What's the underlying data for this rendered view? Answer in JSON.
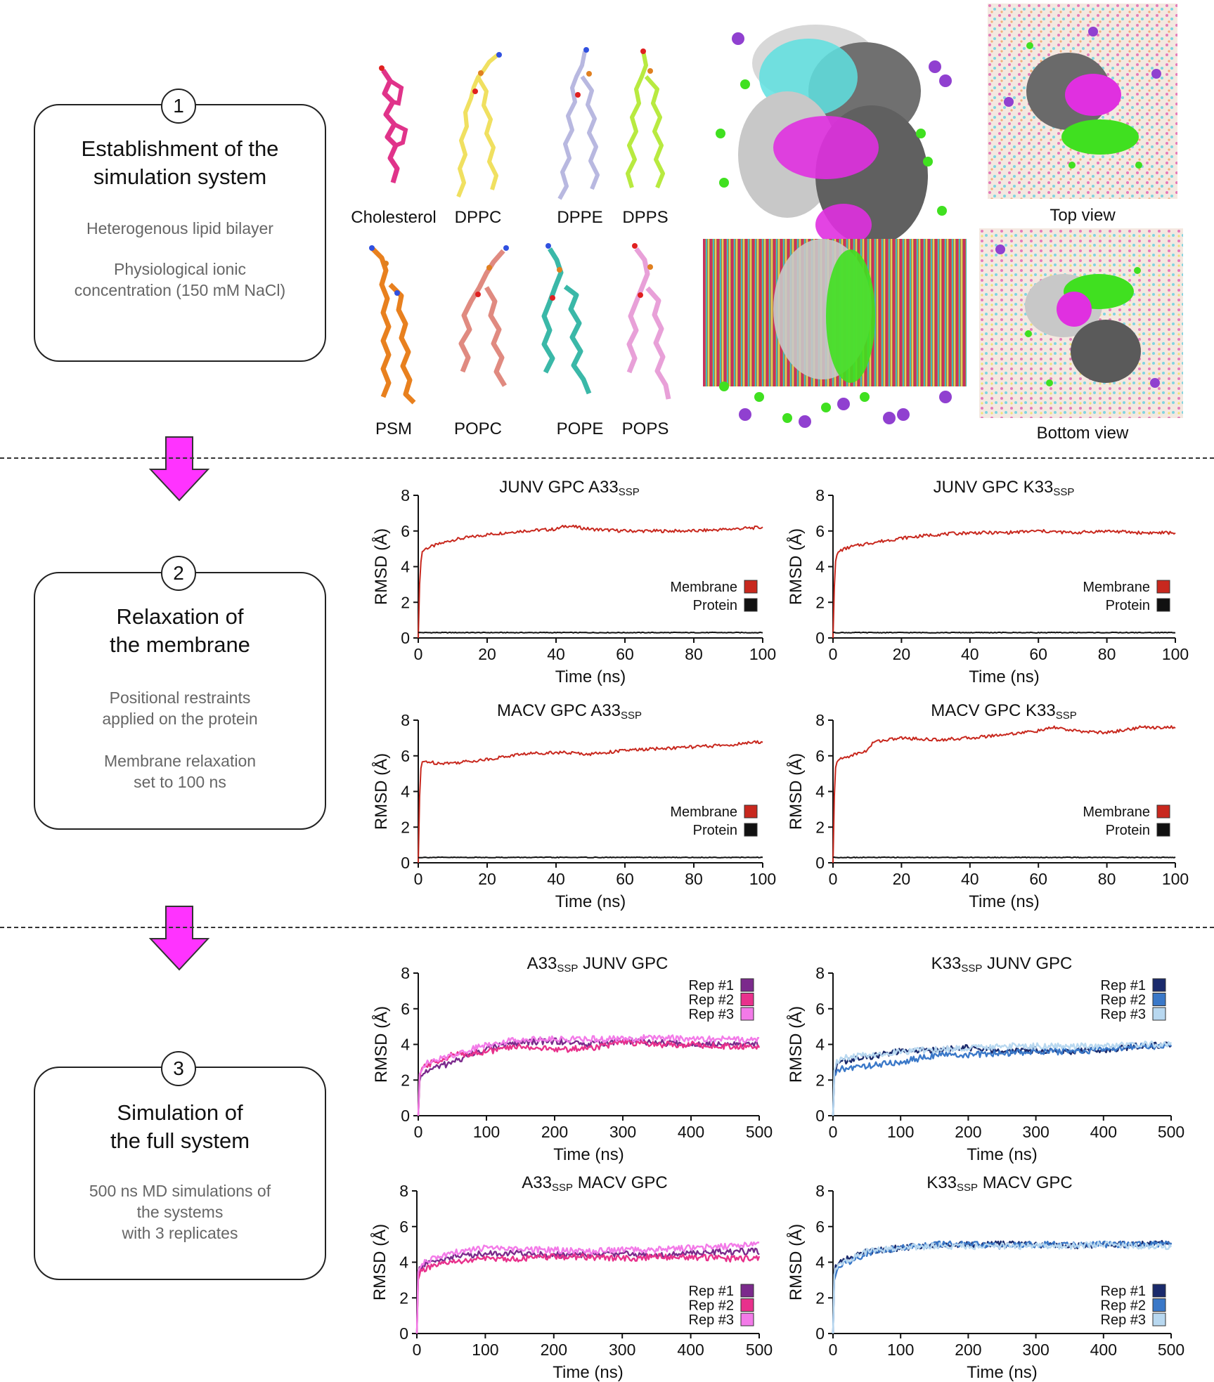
{
  "colors": {
    "membrane": "#c8281e",
    "protein": "#111111",
    "arrow": "#ff33ff",
    "junv_rep1": "#7b2a8c",
    "junv_rep2": "#e8318c",
    "junv_rep3": "#f37ae8",
    "k33_rep1": "#1a2a6c",
    "k33_rep2": "#3a78c8",
    "k33_rep3": "#b8d8f0"
  },
  "steps": [
    {
      "number": "1",
      "title_line1": "Establishment of the",
      "title_line2": "simulation system",
      "desc_line1": "Heterogenous lipid bilayer",
      "desc_line2": "Physiological ionic",
      "desc_line3": "concentration (150 mM NaCl)"
    },
    {
      "number": "2",
      "title_line1": "Relaxation of",
      "title_line2": "the membrane",
      "desc_line1": "Positional restraints",
      "desc_line2": "applied on the protein",
      "desc_line3": "Membrane relaxation",
      "desc_line4": "set to 100 ns"
    },
    {
      "number": "3",
      "title_line1": "Simulation of",
      "title_line2": "the full system",
      "desc_line1": "500 ns MD simulations of",
      "desc_line2": "the systems",
      "desc_line3": "with 3 replicates"
    }
  ],
  "lipids": [
    {
      "name": "Cholesterol",
      "color": "#e0338a"
    },
    {
      "name": "DPPC",
      "color": "#f0e060"
    },
    {
      "name": "DPPE",
      "color": "#b8b8e0"
    },
    {
      "name": "DPPS",
      "color": "#b8ea40"
    },
    {
      "name": "PSM",
      "color": "#e8801e"
    },
    {
      "name": "POPC",
      "color": "#e08a80"
    },
    {
      "name": "POPE",
      "color": "#3ab8a8"
    },
    {
      "name": "POPS",
      "color": "#e8a0d8"
    }
  ],
  "views": {
    "top": "Top view",
    "bottom": "Bottom view"
  },
  "chart_data": [
    {
      "id": "c1",
      "type": "line",
      "title": "JUNV GPC A33",
      "title_sub": "SSP",
      "xlabel": "Time (ns)",
      "ylabel": "RMSD (Å)",
      "xlim": [
        0,
        100
      ],
      "ylim": [
        0,
        8
      ],
      "xticks": [
        "0",
        "20",
        "40",
        "60",
        "80",
        "100"
      ],
      "yticks": [
        "0",
        "2",
        "4",
        "6",
        "8"
      ],
      "series": [
        {
          "name": "Membrane",
          "color": "#c8281e",
          "x": [
            0,
            0.5,
            1,
            2,
            5,
            10,
            20,
            30,
            40,
            43,
            50,
            60,
            70,
            80,
            90,
            100
          ],
          "y": [
            0,
            3.8,
            4.8,
            5.0,
            5.2,
            5.5,
            5.8,
            6.0,
            6.1,
            6.3,
            6.1,
            6.0,
            6.0,
            6.0,
            6.1,
            6.2
          ]
        },
        {
          "name": "Protein",
          "color": "#111111",
          "x": [
            0,
            100
          ],
          "y": [
            0.3,
            0.3
          ]
        }
      ]
    },
    {
      "id": "c2",
      "type": "line",
      "title": "JUNV GPC K33",
      "title_sub": "SSP",
      "xlabel": "Time (ns)",
      "ylabel": "RMSD (Å)",
      "xlim": [
        0,
        100
      ],
      "ylim": [
        0,
        8
      ],
      "xticks": [
        "0",
        "20",
        "40",
        "60",
        "80",
        "100"
      ],
      "yticks": [
        "0",
        "2",
        "4",
        "6",
        "8"
      ],
      "series": [
        {
          "name": "Membrane",
          "color": "#c8281e",
          "x": [
            0,
            0.5,
            1,
            2,
            5,
            10,
            20,
            30,
            40,
            50,
            60,
            70,
            80,
            90,
            100
          ],
          "y": [
            0,
            3.8,
            4.6,
            4.9,
            5.1,
            5.3,
            5.6,
            5.8,
            5.9,
            5.9,
            6.0,
            5.9,
            6.0,
            5.9,
            5.9
          ]
        },
        {
          "name": "Protein",
          "color": "#111111",
          "x": [
            0,
            100
          ],
          "y": [
            0.3,
            0.3
          ]
        }
      ]
    },
    {
      "id": "c3",
      "type": "line",
      "title": "MACV GPC A33",
      "title_sub": "SSP",
      "xlabel": "Time (ns)",
      "ylabel": "RMSD (Å)",
      "xlim": [
        0,
        100
      ],
      "ylim": [
        0,
        8
      ],
      "xticks": [
        "0",
        "20",
        "40",
        "60",
        "80",
        "100"
      ],
      "yticks": [
        "0",
        "2",
        "4",
        "6",
        "8"
      ],
      "series": [
        {
          "name": "Membrane",
          "color": "#c8281e",
          "x": [
            0,
            0.5,
            1,
            2,
            5,
            10,
            20,
            30,
            40,
            50,
            60,
            70,
            80,
            90,
            100
          ],
          "y": [
            0,
            4.8,
            5.6,
            5.7,
            5.6,
            5.6,
            5.8,
            6.1,
            6.2,
            6.1,
            6.3,
            6.4,
            6.5,
            6.6,
            6.8
          ]
        },
        {
          "name": "Protein",
          "color": "#111111",
          "x": [
            0,
            100
          ],
          "y": [
            0.3,
            0.3
          ]
        }
      ]
    },
    {
      "id": "c4",
      "type": "line",
      "title": "MACV GPC K33",
      "title_sub": "SSP",
      "xlabel": "Time (ns)",
      "ylabel": "RMSD (Å)",
      "xlim": [
        0,
        100
      ],
      "ylim": [
        0,
        8
      ],
      "xticks": [
        "0",
        "20",
        "40",
        "60",
        "80",
        "100"
      ],
      "yticks": [
        "0",
        "2",
        "4",
        "6",
        "8"
      ],
      "series": [
        {
          "name": "Membrane",
          "color": "#c8281e",
          "x": [
            0,
            0.5,
            1,
            2,
            5,
            10,
            12,
            20,
            30,
            40,
            50,
            60,
            65,
            70,
            80,
            90,
            100
          ],
          "y": [
            0,
            4.8,
            5.7,
            5.8,
            6.0,
            6.3,
            6.8,
            7.0,
            6.9,
            7.0,
            7.2,
            7.4,
            7.6,
            7.4,
            7.3,
            7.6,
            7.6
          ]
        },
        {
          "name": "Protein",
          "color": "#111111",
          "x": [
            0,
            100
          ],
          "y": [
            0.3,
            0.3
          ]
        }
      ]
    },
    {
      "id": "c5",
      "type": "line",
      "title": "JUNV GPC",
      "title_pre": "A33",
      "title_sub": "SSP",
      "xlabel": "Time (ns)",
      "ylabel": "RMSD (Å)",
      "xlim": [
        0,
        500
      ],
      "ylim": [
        0,
        8
      ],
      "xticks": [
        "0",
        "100",
        "200",
        "300",
        "400",
        "500"
      ],
      "yticks": [
        "0",
        "2",
        "4",
        "6",
        "8"
      ],
      "legend_position": "top-right",
      "series": [
        {
          "name": "Rep #1",
          "color": "#7b2a8c",
          "x": [
            0,
            2,
            10,
            50,
            100,
            150,
            200,
            250,
            300,
            350,
            400,
            450,
            500
          ],
          "y": [
            0,
            2.0,
            2.5,
            3.0,
            3.8,
            4.1,
            4.2,
            4.0,
            4.2,
            4.1,
            4.0,
            4.1,
            4.0
          ]
        },
        {
          "name": "Rep #2",
          "color": "#e8318c",
          "x": [
            0,
            2,
            10,
            50,
            100,
            150,
            200,
            250,
            300,
            350,
            400,
            450,
            500
          ],
          "y": [
            0,
            2.3,
            2.8,
            3.4,
            3.6,
            3.9,
            3.7,
            3.8,
            4.1,
            4.0,
            4.0,
            3.9,
            3.9
          ]
        },
        {
          "name": "Rep #3",
          "color": "#f37ae8",
          "x": [
            0,
            2,
            10,
            50,
            100,
            150,
            200,
            250,
            300,
            350,
            400,
            450,
            500
          ],
          "y": [
            0,
            2.5,
            2.9,
            3.4,
            4.0,
            4.3,
            4.3,
            4.3,
            4.3,
            4.4,
            4.3,
            4.3,
            4.3
          ]
        }
      ]
    },
    {
      "id": "c6",
      "type": "line",
      "title": "JUNV GPC",
      "title_pre": "K33",
      "title_sub": "SSP",
      "xlabel": "Time (ns)",
      "ylabel": "RMSD (Å)",
      "xlim": [
        0,
        500
      ],
      "ylim": [
        0,
        8
      ],
      "xticks": [
        "0",
        "100",
        "200",
        "300",
        "400",
        "500"
      ],
      "yticks": [
        "0",
        "2",
        "4",
        "6",
        "8"
      ],
      "legend_position": "top-right",
      "series": [
        {
          "name": "Rep #1",
          "color": "#1a2a6c",
          "x": [
            0,
            2,
            10,
            50,
            100,
            150,
            200,
            250,
            300,
            350,
            400,
            450,
            500
          ],
          "y": [
            0,
            2.5,
            3.0,
            3.3,
            3.6,
            3.7,
            3.8,
            3.6,
            3.7,
            3.6,
            3.7,
            3.9,
            4.0
          ]
        },
        {
          "name": "Rep #2",
          "color": "#3a78c8",
          "x": [
            0,
            2,
            10,
            50,
            100,
            150,
            200,
            250,
            300,
            350,
            400,
            450,
            500
          ],
          "y": [
            0,
            2.2,
            2.6,
            2.8,
            3.0,
            3.4,
            3.4,
            3.5,
            3.6,
            3.6,
            3.7,
            3.9,
            3.9
          ]
        },
        {
          "name": "Rep #3",
          "color": "#b8d8f0",
          "x": [
            0,
            2,
            10,
            50,
            100,
            150,
            200,
            250,
            300,
            350,
            400,
            450,
            500
          ],
          "y": [
            0,
            2.8,
            3.2,
            3.4,
            3.6,
            3.7,
            3.8,
            3.9,
            3.9,
            3.9,
            3.9,
            4.0,
            4.0
          ]
        }
      ]
    },
    {
      "id": "c7",
      "type": "line",
      "title": "MACV GPC",
      "title_pre": "A33",
      "title_sub": "SSP",
      "xlabel": "Time (ns)",
      "ylabel": "RMSD (Å)",
      "xlim": [
        0,
        500
      ],
      "ylim": [
        0,
        8
      ],
      "xticks": [
        "0",
        "100",
        "200",
        "300",
        "400",
        "500"
      ],
      "yticks": [
        "0",
        "2",
        "4",
        "6",
        "8"
      ],
      "legend_position": "bottom-right",
      "series": [
        {
          "name": "Rep #1",
          "color": "#7b2a8c",
          "x": [
            0,
            2,
            10,
            50,
            100,
            150,
            200,
            250,
            300,
            350,
            400,
            450,
            500
          ],
          "y": [
            0,
            3.5,
            3.9,
            4.3,
            4.5,
            4.5,
            4.4,
            4.4,
            4.5,
            4.4,
            4.5,
            4.6,
            4.6
          ]
        },
        {
          "name": "Rep #2",
          "color": "#e8318c",
          "x": [
            0,
            2,
            10,
            50,
            100,
            150,
            200,
            250,
            300,
            350,
            400,
            450,
            500
          ],
          "y": [
            0,
            3.3,
            3.6,
            4.0,
            4.2,
            4.2,
            4.3,
            4.3,
            4.2,
            4.3,
            4.3,
            4.2,
            4.2
          ]
        },
        {
          "name": "Rep #3",
          "color": "#f37ae8",
          "x": [
            0,
            2,
            10,
            50,
            100,
            150,
            200,
            250,
            300,
            350,
            400,
            450,
            500
          ],
          "y": [
            0,
            3.6,
            4.0,
            4.5,
            4.8,
            4.7,
            4.7,
            4.6,
            4.7,
            4.7,
            4.8,
            4.9,
            5.0
          ]
        }
      ]
    },
    {
      "id": "c8",
      "type": "line",
      "title": "MACV GPC",
      "title_pre": "K33",
      "title_sub": "SSP",
      "xlabel": "Time (ns)",
      "ylabel": "RMSD (Å)",
      "xlim": [
        0,
        500
      ],
      "ylim": [
        0,
        8
      ],
      "xticks": [
        "0",
        "100",
        "200",
        "300",
        "400",
        "500"
      ],
      "yticks": [
        "0",
        "2",
        "4",
        "6",
        "8"
      ],
      "legend_position": "bottom-right",
      "series": [
        {
          "name": "Rep #1",
          "color": "#1a2a6c",
          "x": [
            0,
            2,
            10,
            50,
            100,
            150,
            200,
            250,
            300,
            350,
            400,
            450,
            500
          ],
          "y": [
            0,
            3.6,
            4.0,
            4.6,
            4.8,
            5.0,
            5.0,
            5.0,
            5.0,
            4.9,
            5.0,
            5.0,
            5.1
          ]
        },
        {
          "name": "Rep #2",
          "color": "#3a78c8",
          "x": [
            0,
            2,
            10,
            50,
            100,
            150,
            200,
            250,
            300,
            350,
            400,
            450,
            500
          ],
          "y": [
            0,
            3.2,
            3.8,
            4.5,
            4.8,
            5.0,
            5.0,
            4.9,
            5.0,
            5.0,
            5.0,
            5.0,
            5.0
          ]
        },
        {
          "name": "Rep #3",
          "color": "#b8d8f0",
          "x": [
            0,
            2,
            10,
            50,
            100,
            150,
            200,
            250,
            300,
            350,
            400,
            450,
            500
          ],
          "y": [
            0,
            3.4,
            3.9,
            4.6,
            4.8,
            4.9,
            4.9,
            4.9,
            4.9,
            4.9,
            5.0,
            4.9,
            4.9
          ]
        }
      ]
    }
  ]
}
